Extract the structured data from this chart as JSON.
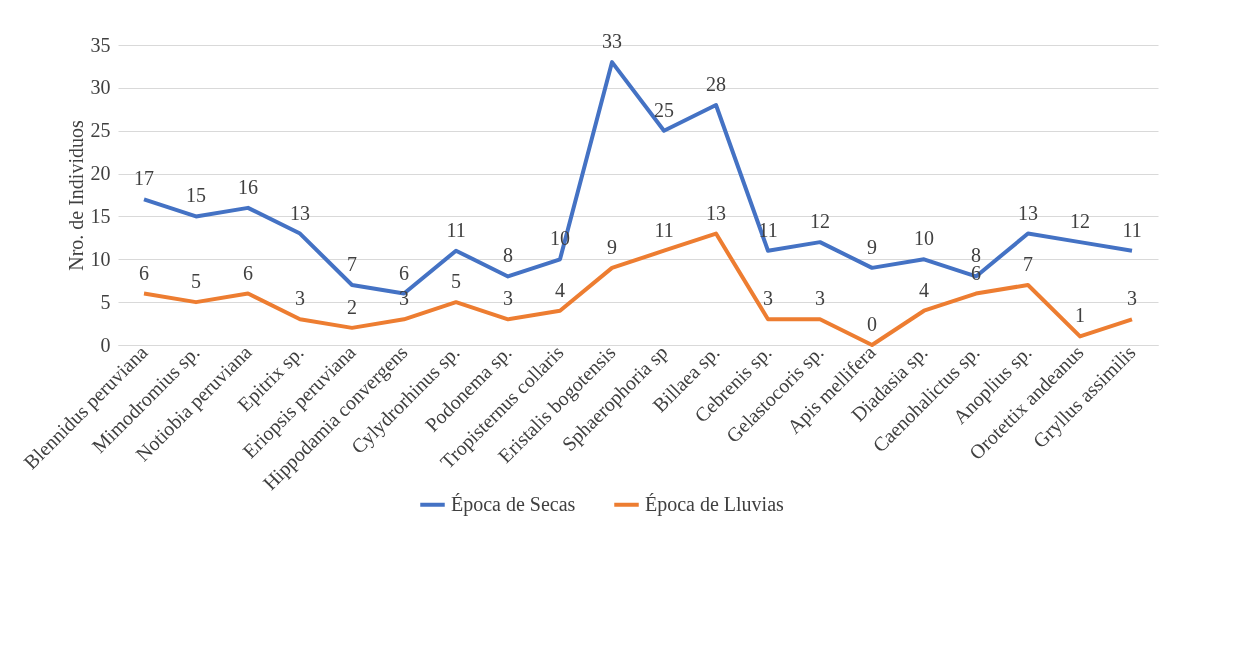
{
  "chart_data": {
    "type": "line",
    "ylabel": "Nro. de Individuos",
    "categories": [
      "Blennidus peruviana",
      "Mimodromius sp.",
      "Notiobia peruviana",
      "Epitrix sp.",
      "Eriopsis peruviana",
      "Hippodamia convergens",
      "Cylydrorhinus sp.",
      "Podonema sp.",
      "Tropisternus collaris",
      "Eristalis bogotensis",
      "Sphaerophoria sp",
      "Billaea sp.",
      "Cebrenis sp.",
      "Gelastocoris sp.",
      "Apis mellifera",
      "Diadasia sp.",
      "Caenohalictus sp.",
      "Anoplius sp.",
      "Orotettix andeanus",
      "Gryllus assimilis"
    ],
    "series": [
      {
        "name": "Época de Secas",
        "color": "#4472c4",
        "values": [
          17,
          15,
          16,
          13,
          7,
          6,
          11,
          8,
          10,
          33,
          25,
          28,
          11,
          12,
          9,
          10,
          8,
          13,
          12,
          11
        ]
      },
      {
        "name": "Época de Lluvias",
        "color": "#ed7d31",
        "values": [
          6,
          5,
          6,
          3,
          2,
          3,
          5,
          3,
          4,
          9,
          11,
          13,
          3,
          3,
          0,
          4,
          6,
          7,
          1,
          3
        ]
      }
    ],
    "ylim": [
      0,
      35
    ],
    "yticks": [
      0,
      5,
      10,
      15,
      20,
      25,
      30,
      35
    ],
    "grid": "y",
    "legend": "bottom",
    "data_labels": true,
    "marker": "none",
    "line_style": "solid"
  }
}
